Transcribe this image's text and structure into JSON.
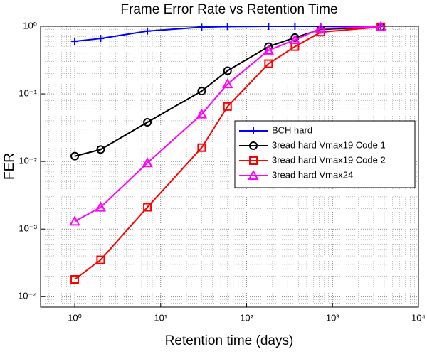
{
  "chart_data": {
    "type": "line",
    "title": "Frame Error Rate vs Retention Time",
    "xlabel": "Retention time (days)",
    "ylabel": "FER",
    "x": [
      1,
      2,
      7,
      30,
      60,
      180,
      365,
      730,
      3650
    ],
    "series": [
      {
        "name": "BCH hard",
        "color": "#0000ff",
        "marker": "plus",
        "values": [
          0.6,
          0.66,
          0.85,
          0.97,
          0.99,
          1,
          1,
          1,
          1
        ]
      },
      {
        "name": "3read hard Vmax19 Code 1",
        "color": "#000000",
        "marker": "circle",
        "values": [
          0.012,
          0.015,
          0.038,
          0.11,
          0.22,
          0.5,
          0.68,
          0.9,
          0.98
        ]
      },
      {
        "name": "3read hard Vmax19 Code 2",
        "color": "#ff0000",
        "marker": "square",
        "values": [
          0.00018,
          0.00035,
          0.0021,
          0.016,
          0.065,
          0.28,
          0.5,
          0.82,
          0.98
        ]
      },
      {
        "name": "3read hard Vmax24",
        "color": "#ff00ff",
        "marker": "triangle",
        "values": [
          0.0013,
          0.0021,
          0.0095,
          0.05,
          0.14,
          0.44,
          0.63,
          0.93,
          0.99
        ]
      }
    ],
    "xscale": "log",
    "yscale": "log",
    "xlim": [
      0.4,
      10000
    ],
    "ylim": [
      7e-05,
      1
    ],
    "xticks": [
      {
        "value": 1,
        "label": "10⁰"
      },
      {
        "value": 10,
        "label": "10¹"
      },
      {
        "value": 100,
        "label": "10²"
      },
      {
        "value": 1000,
        "label": "10³"
      },
      {
        "value": 10000,
        "label": "10⁴"
      }
    ],
    "yticks": [
      {
        "value": 0.0001,
        "label": "10⁻⁴"
      },
      {
        "value": 0.001,
        "label": "10⁻³"
      },
      {
        "value": 0.01,
        "label": "10⁻²"
      },
      {
        "value": 0.1,
        "label": "10⁻¹"
      },
      {
        "value": 1,
        "label": "10⁰"
      }
    ],
    "grid": true,
    "legend": "right"
  }
}
